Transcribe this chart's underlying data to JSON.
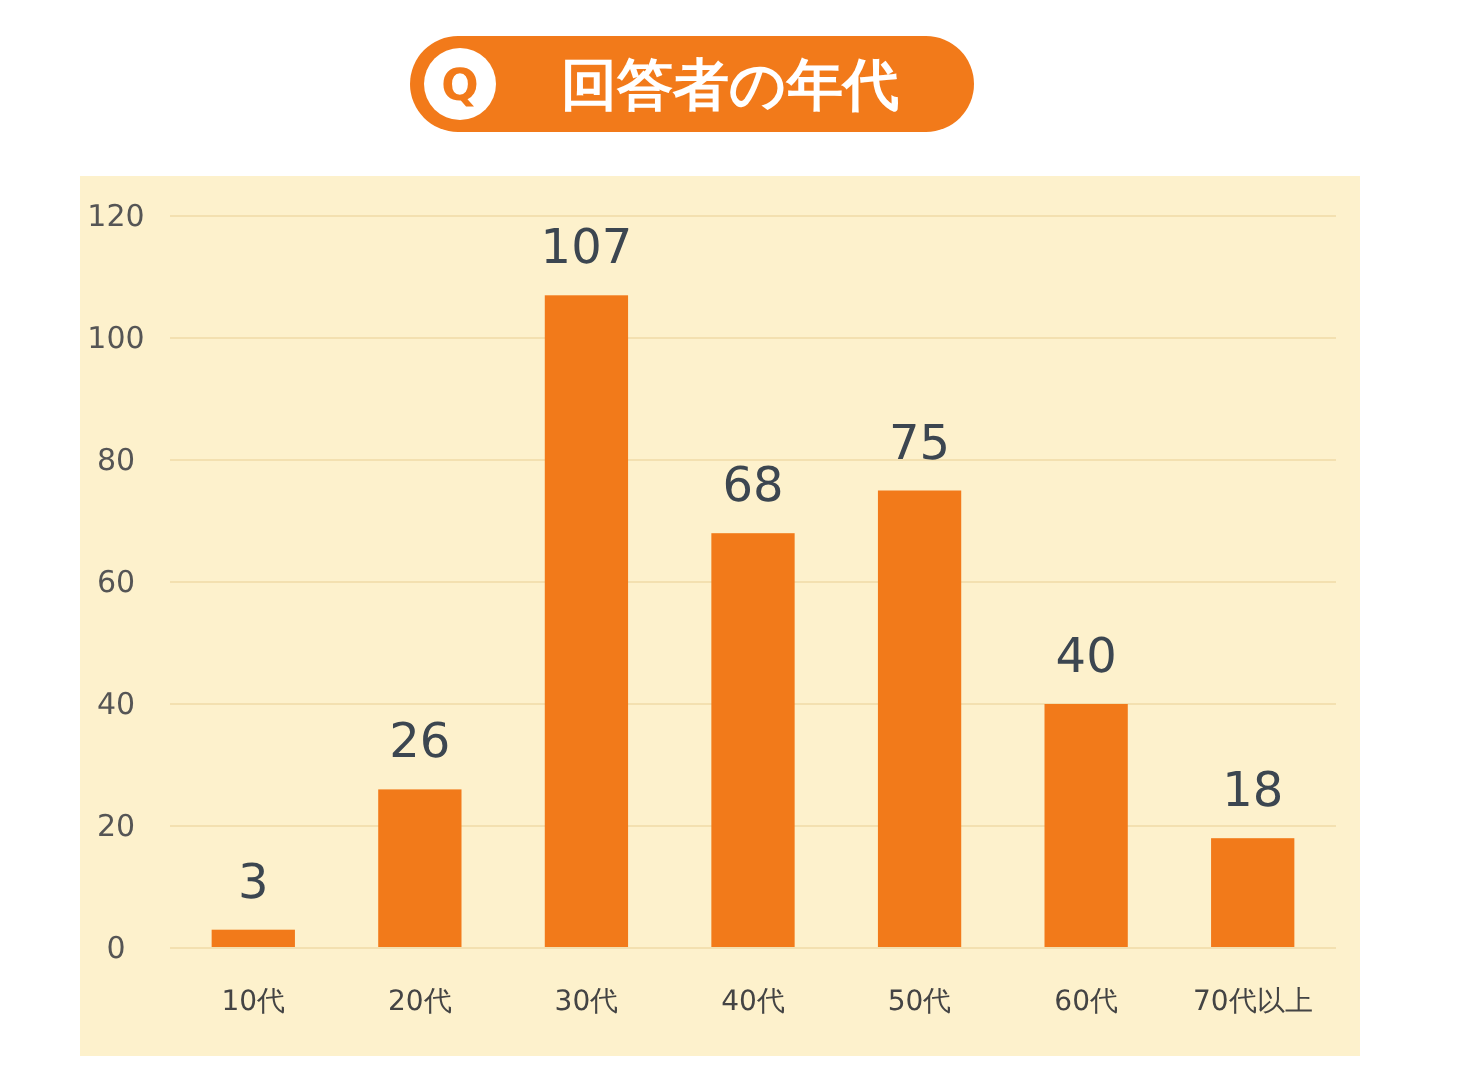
{
  "chart_data": {
    "type": "bar",
    "title": "回答者の年代",
    "annotations": [
      "Q"
    ],
    "categories": [
      "10代",
      "20代",
      "30代",
      "40代",
      "50代",
      "60代",
      "70代以上"
    ],
    "values": [
      3,
      26,
      107,
      68,
      75,
      40,
      18
    ],
    "color": "#f27a1a",
    "ylim": [
      0,
      120
    ],
    "yticks": [
      0,
      20,
      40,
      60,
      80,
      100,
      120
    ],
    "grid": "y",
    "data_labels": true
  }
}
